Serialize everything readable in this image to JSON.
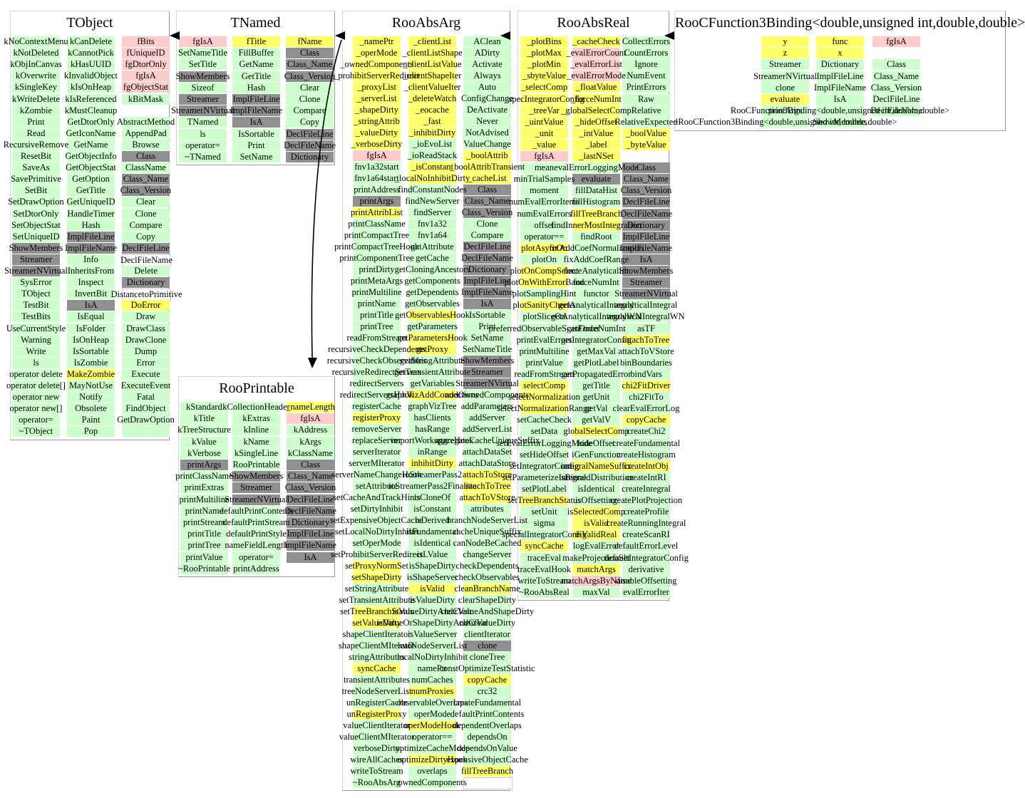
{
  "diagram": {
    "background": "#ffffff",
    "cell_colors": {
      "g": "#ccffcc",
      "y": "#ffff66",
      "p": "#ffcccc",
      "d": "#909090",
      "w": "#ffffff"
    },
    "arrows": [
      {
        "from": "TNamed",
        "to": "TObject"
      },
      {
        "from": "RooAbsArg",
        "to": "TNamed"
      },
      {
        "from": "RooAbsReal",
        "to": "RooAbsArg"
      },
      {
        "from": "RooCFunction3Binding<double,unsigned int,double,double>",
        "to": "RooAbsReal"
      },
      {
        "from": "RooAbsArg",
        "to": "RooPrintable"
      }
    ],
    "boxes": [
      {
        "id": "TObject",
        "title": "TObject",
        "cols": [
          [
            "kNoContextMenu",
            "kNotDeleted",
            "kObjInCanvas",
            "kOverwrite",
            "kSingleKey",
            "kWriteDelete",
            "kZombie",
            "Print",
            "Read",
            "RecursiveRemove",
            "ResetBit",
            "SaveAs",
            "SavePrimitive",
            "SetBit",
            "SetDrawOption",
            "SetDtorOnly",
            "SetObjectStat",
            "SetUniqueID",
            "ShowMembers|d",
            "Streamer|d",
            "StreamerNVirtual|d",
            "SysError",
            "TObject",
            "TestBit",
            "TestBits",
            "UseCurrentStyle",
            "Warning",
            "Write",
            "ls",
            "operator delete",
            "operator delete[]",
            "operator new",
            "operator new[]",
            "operator=",
            "~TObject"
          ],
          [
            "kCanDelete",
            "kCannotPick",
            "kHasUUID",
            "kInvalidObject",
            "kIsOnHeap",
            "kIsReferenced",
            "kMustCleanup",
            "GetDtorOnly",
            "GetIconName",
            "GetName",
            "GetObjectInfo",
            "GetObjectStat",
            "GetOption",
            "GetTitle",
            "GetUniqueID",
            "HandleTimer",
            "Hash",
            "ImplFileLine|d",
            "ImplFileName|d",
            "Info",
            "InheritsFrom",
            "Inspect",
            "InvertBit",
            "IsA|d",
            "IsEqual",
            "IsFolder",
            "IsOnHeap",
            "IsSortable",
            "IsZombie",
            "MakeZombie|y",
            "MayNotUse",
            "Notify",
            "Obsolete",
            "Paint",
            "Pop"
          ],
          [
            "fBits|p",
            "fUniqueID|p",
            "fgDtorOnly|p",
            "fgIsA|p",
            "fgObjectStat|p",
            "kBitMask",
            null,
            "AbstractMethod",
            "AppendPad",
            "Browse",
            "Class|d",
            "ClassName",
            "Class_Name|d",
            "Class_Version|d",
            "Clear",
            "Clone",
            "Compare",
            "Copy",
            "DeclFileLine|d",
            "DeclFileName|w",
            "Delete",
            "Dictionary|d",
            "DistancetoPrimitive|w",
            "DoError|y",
            "Draw",
            "DrawClass",
            "DrawClone",
            "Dump",
            "Error",
            "Execute",
            "ExecuteEvent",
            "Fatal",
            "FindObject",
            "GetDrawOption",
            "|g"
          ]
        ]
      },
      {
        "id": "TNamed",
        "title": "TNamed",
        "cols": [
          [
            "fgIsA|p",
            "SetNameTitle",
            "SetTitle",
            "ShowMembers|d",
            "Sizeof",
            "Streamer|d",
            "StreamerNVirtual|d",
            "TNamed",
            "ls",
            "operator=",
            "~TNamed"
          ],
          [
            "fTitle|y",
            "FillBuffer",
            "GetName",
            "GetTitle",
            "Hash",
            "ImplFileLine|d",
            "ImplFileName|d",
            "IsA|d",
            "IsSortable",
            "Print",
            "SetName"
          ],
          [
            "fName|y",
            "Class|d",
            "Class_Name|d",
            "Class_Version|d",
            "Clear",
            "Clone",
            "Compare",
            "Copy",
            "DeclFileLine|d",
            "DeclFileName|d",
            "Dictionary|d"
          ]
        ]
      },
      {
        "id": "RooPrintable",
        "title": "RooPrintable",
        "cols": [
          [
            "kStandard",
            "kTitle",
            "kTreeStructure",
            "kValue",
            "kVerbose",
            "printArgs|d",
            "printClassName",
            "printExtras",
            "printMultiline",
            "printName",
            "printStream",
            "printTitle",
            "printTree",
            "printValue",
            "~RooPrintable"
          ],
          [
            "kCollectionHeader",
            "kExtras",
            "kInline",
            "kName",
            "kSingleLine",
            "RooPrintable",
            "ShowMembers|d",
            "Streamer|d",
            "StreamerNVirtual|d",
            "defaultPrintContents",
            "defaultPrintStream",
            "defaultPrintStyle",
            "nameFieldLength",
            "operator=",
            "printAddress"
          ],
          [
            "_nameLength|y",
            "fgIsA|p",
            "kAddress",
            "kArgs",
            "kClassName",
            "Class|d",
            "Class_Name|d",
            "Class_Version|d",
            "DeclFileLine|d",
            "DeclFileName|d",
            "Dictionary|d",
            "ImplFileLine|d",
            "ImplFileName|d",
            "IsA|d",
            null
          ]
        ]
      },
      {
        "id": "RooAbsArg",
        "title": "RooAbsArg",
        "cols": [
          [
            "_namePtr|y",
            "_operMode|y",
            "_ownedComponents|y",
            "_prohibitServerRedirect|y",
            "_proxyList|y",
            "_serverList|y",
            "_shapeDirty|y",
            "_stringAttrib|y",
            "_valueDirty|y",
            "_verboseDirty|y",
            "fgIsA|p",
            "fnv1a32start",
            "fnv1a64start",
            "printAddress",
            "printArgs|d",
            "printAttribList|y",
            "printClassName",
            "printCompactTree",
            "printCompactTreeHook",
            "printComponentTree",
            "printDirty",
            "printMetaArgs",
            "printMultiline",
            "printName",
            "printTitle",
            "printTree",
            "readFromStream",
            "recursiveCheckDependents",
            "recursiveCheckObservables",
            "recursiveRedirectServers",
            "redirectServers",
            "redirectServersHook",
            "registerCache",
            "registerProxy|y",
            "removeServer",
            "replaceServer",
            "serverIterator",
            "serverMIterator",
            "serverNameChangeHook",
            "setAttribute",
            "setCacheAndTrackHints",
            "setDirtyInhibit",
            "setExpensiveObjectCache",
            "setLocalNoDirtyInhibit",
            "setOperMode",
            "setProhibitServerRedirect",
            "setProxyNormSet|y",
            "setShapeDirty|y",
            "setStringAttribute",
            "setTransientAttribute",
            "setTreeBranchStatus|y",
            "setValueDirty|y",
            "shapeClientIterator",
            "shapeClientMIterator",
            "stringAttributes",
            "syncCache|y",
            "transientAttributes",
            "treeNodeServerList",
            "unRegisterCache",
            "unRegisterProxy|y",
            "valueClientIterator",
            "valueClientMIterator",
            "verboseDirty",
            "wireAllCaches",
            "writeToStream",
            "~RooAbsArg"
          ],
          [
            "_clientList|y",
            "_clientListShape|y",
            "_clientListValue|y",
            "_clientShapeIter|y",
            "_clientValueIter|y",
            "_deleteWatch|y",
            "_eocache|y",
            "_fast|y",
            "_inhibitDirty|y",
            "_ioEvoList",
            "_ioReadStack",
            "_isConstant|y",
            "_localNoInhibitDirty|y",
            "findConstantNodes",
            "findNewServer",
            "findServer",
            "fnv1a32",
            "fnv1a64",
            "getAttribute",
            "getCache",
            "getCloningAncestors",
            "getComponents",
            "getDependents",
            "getObservables",
            "getObservablesHook|y",
            "getParameters",
            "getParametersHook|y",
            "getProxy|y",
            "getStringAttribute",
            "getTransientAttribute",
            "getVariables",
            "graphVizAddConnections|y",
            "graphVizTree",
            "hasClients",
            "hasRange",
            "importWorkspaceHook",
            "inRange",
            "inhibitDirty|y",
            "ioStreamerPass2",
            "ioStreamerPass2Finalize",
            "isCloneOf",
            "isConstant",
            "isDerived",
            "isFundamental",
            "isIdentical",
            "isLValue",
            "isShapeDirty",
            "isShapeServer",
            "isValid|y",
            "isValueDirty",
            "isValueDirtyAndClear",
            "isValueOrShapeDirtyAndClear",
            "isValueServer",
            "leafNodeServerList",
            "localNoDirtyInhibit",
            "namePtr",
            "numCaches",
            "numProxies|y",
            "observableOverlaps",
            "operMode",
            "operModeHook|y",
            "operator==",
            "optimizeCacheMode",
            "optimizeDirtyHook|y",
            "overlaps",
            "ownedComponents"
          ],
          [
            "AClean",
            "ADirty",
            "Activate",
            "Always",
            "Auto",
            "ConfigChange",
            "DeActivate",
            "Never",
            "NotAdvised",
            "ValueChange",
            "_boolAttrib|y",
            "_boolAttribTransient|y",
            "_cacheList|y",
            "Class|d",
            "Class_Name|d",
            "Class_Version|d",
            "Clone",
            "Compare",
            "DeclFileLine|d",
            "DeclFileName|d",
            "Dictionary|d",
            "ImplFileLine|d",
            "ImplFileName|d",
            "IsA|d",
            "IsSortable",
            "Print",
            "SetName",
            "SetNameTitle",
            "ShowMembers|d",
            "Streamer|d",
            "StreamerNVirtual|d",
            "addOwnedComponents",
            "addParameters",
            "addServer",
            "addServerList",
            "aggregateCacheUniqueSuffix",
            "attachDataSet",
            "attachDataStore",
            "attachToStore|y",
            "attachToTree|y",
            "attachToVStore|y",
            "attributes",
            "branchNodeServerList",
            "cacheUniqueSuffix",
            "canNodeBeCached",
            "changeServer",
            "checkDependents",
            "checkObservables",
            "cleanBranchName|y",
            "clearShapeDirty",
            "clearValueAndShapeDirty",
            "clearValueDirty",
            "clientIterator",
            "clone|d",
            "cloneTree",
            "constOptimizeTestStatistic",
            "copyCache|y",
            "crc32",
            "createFundamental",
            "defaultPrintContents",
            "dependentOverlaps",
            "dependsOn",
            "dependsOnValue",
            "expensiveObjectCache",
            "fillTreeBranch|y",
            "|w"
          ]
        ]
      },
      {
        "id": "RooAbsReal",
        "title": "RooAbsReal",
        "cols": [
          [
            "_plotBins|y",
            "_plotMax|y",
            "_plotMin|y",
            "_sbyteValue|y",
            "_selectComp|y",
            "_specIntegratorConfig|y",
            "_treeVar|y",
            "_uintValue|y",
            "_unit|y",
            "_value|y",
            "fgIsA|p",
            "mean",
            "minTrialSamples",
            "moment",
            "numEvalErrorItems",
            "numEvalErrors",
            "offset",
            "operator==",
            "plotAsymOn|y",
            "plotOn",
            "plotOnCompSelect|y",
            "plotOnWithErrorBand|y",
            "plotSamplingHint",
            "plotSanityChecks|y",
            "plotSliceOn",
            "preferredObservableScanOrder",
            "printEvalErrors",
            "printMultiline",
            "printValue",
            "readFromStream",
            "selectComp|y",
            "selectNormalization|y",
            "selectNormalizationRange|y",
            "setCacheCheck",
            "setData",
            "setEvalErrorLoggingMode",
            "setHideOffset",
            "setIntegratorConfig",
            "setParameterizeIntegral",
            "setPlotLabel",
            "setTreeBranchStatus|y",
            "setUnit",
            "sigma",
            "specialIntegratorConfig",
            "syncCache|y",
            "traceEval",
            "traceEvalHook",
            "writeToStream",
            "~RooAbsReal"
          ],
          [
            "_cacheCheck|y",
            "_evalErrorCount|p",
            "_evalErrorList|p",
            "_evalErrorMode|p",
            "_floatValue|y",
            "_forceNumInt|y",
            "_globalSelectComp|y",
            "_hideOffset|y",
            "_intValue|y",
            "_label|y",
            "_lastNSet|y",
            "evalErrorLoggingMode",
            "evaluate|d",
            "fillDataHist",
            "fillHistogram",
            "fillTreeBranch|y",
            "findInnerMostIntegration|y",
            "findRoot",
            "fixAddCoefNormalization",
            "fixAddCoefRange",
            "forceAnalyticalInt",
            "forceNumInt",
            "functor",
            "getAnalyticalIntegral",
            "getAnalyticalIntegralWN",
            "getForceNumInt",
            "getIntegratorConfig",
            "getMaxVal",
            "getPlotLabel",
            "getPropagatedError",
            "getTitle",
            "getUnit",
            "getVal",
            "getValV",
            "globalSelectComp|y",
            "hideOffset",
            "iGenFunction",
            "integralNameSuffix|y",
            "isBinnedDistribution",
            "isIdentical",
            "isOffsetting",
            "isSelectedComp|y",
            "isValid|y",
            "isValidReal|y",
            "logEvalError",
            "makeProjectionSet",
            "matchArgs|y",
            "matchArgsByName|p",
            "maxVal"
          ],
          [
            "CollectErrors",
            "CountErrors",
            "Ignore",
            "NumEvent",
            "PrintErrors",
            "Raw",
            "Relative",
            "RelativeExpected",
            "_boolValue|y",
            "_byteValue|y",
            null,
            "Class|d",
            "Class_Name|d",
            "Class_Version|d",
            "DeclFileLine|d",
            "DeclFileName|d",
            "Dictionary|d",
            "ImplFileLine|d",
            "ImplFileName|d",
            "IsA|d",
            "ShowMembers|d",
            "Streamer|d",
            "StreamerNVirtual|d",
            "analyticalIntegral",
            "analyticalIntegralWN",
            "asTF",
            "attachToTree|y",
            "attachToVStore",
            "binBoundaries",
            "bindVars",
            "chi2FitDriver|y",
            "chi2FitTo",
            "clearEvalErrorLog",
            "copyCache|y",
            "createChi2",
            "createFundamental",
            "createHistogram",
            "createIntObj|y",
            "createIntRI",
            "createIntegral",
            "createPlotProjection",
            "createProfile",
            "createRunningIntegral",
            "createScanRI",
            "defaultErrorLevel",
            "defaultIntegratorConfig",
            "derivative",
            "disableOffsetting",
            "evalErrorIter"
          ]
        ]
      },
      {
        "id": "RooCFunction3Binding",
        "title": "RooCFunction3Binding<double,unsigned int,double,double>",
        "cols": [
          [
            "y|y",
            "z|y",
            "Streamer",
            "StreamerNVirtual",
            "clone",
            "evaluate|y",
            "printArgs",
            "~RooCFunction3Binding<double,unsigned int,double,double>"
          ],
          [
            "func|y",
            "x|y",
            "Dictionary",
            "ImplFileLine",
            "ImplFileName",
            "IsA",
            "RooCFunction3Binding<double,unsigned int,double,double>",
            "ShowMembers"
          ],
          [
            "fgIsA|p",
            null,
            "Class",
            "Class_Name",
            "Class_Version",
            "DeclFileLine",
            "DeclFileName",
            null
          ]
        ]
      }
    ]
  }
}
